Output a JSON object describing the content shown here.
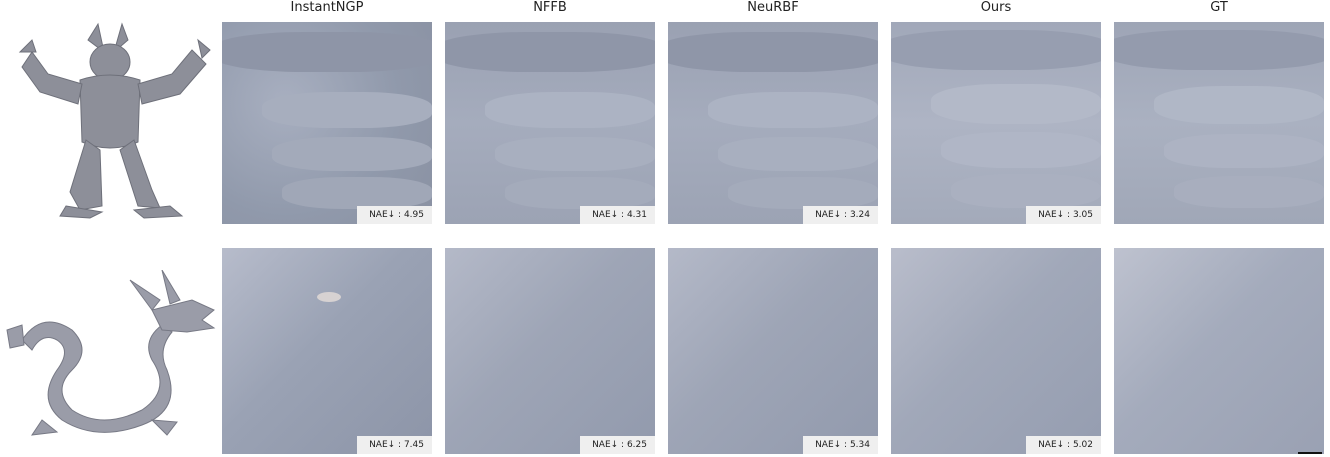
{
  "columns": [
    "InstantNGP",
    "NFFB",
    "NeuRBF",
    "Ours",
    "GT"
  ],
  "rows": [
    {
      "object": "armadillo-icon",
      "metrics": [
        "NAE↓ : 4.95",
        "NAE↓ : 4.31",
        "NAE↓ : 3.24",
        "NAE↓ : 3.05",
        null
      ]
    },
    {
      "object": "dragon-icon",
      "metrics": [
        "NAE↓ : 7.45",
        "NAE↓ : 6.25",
        "NAE↓ : 5.34",
        "NAE↓ : 5.02",
        null
      ]
    }
  ],
  "colors": {
    "surface": "#9ea6b8",
    "label_bg": "#efefef"
  }
}
